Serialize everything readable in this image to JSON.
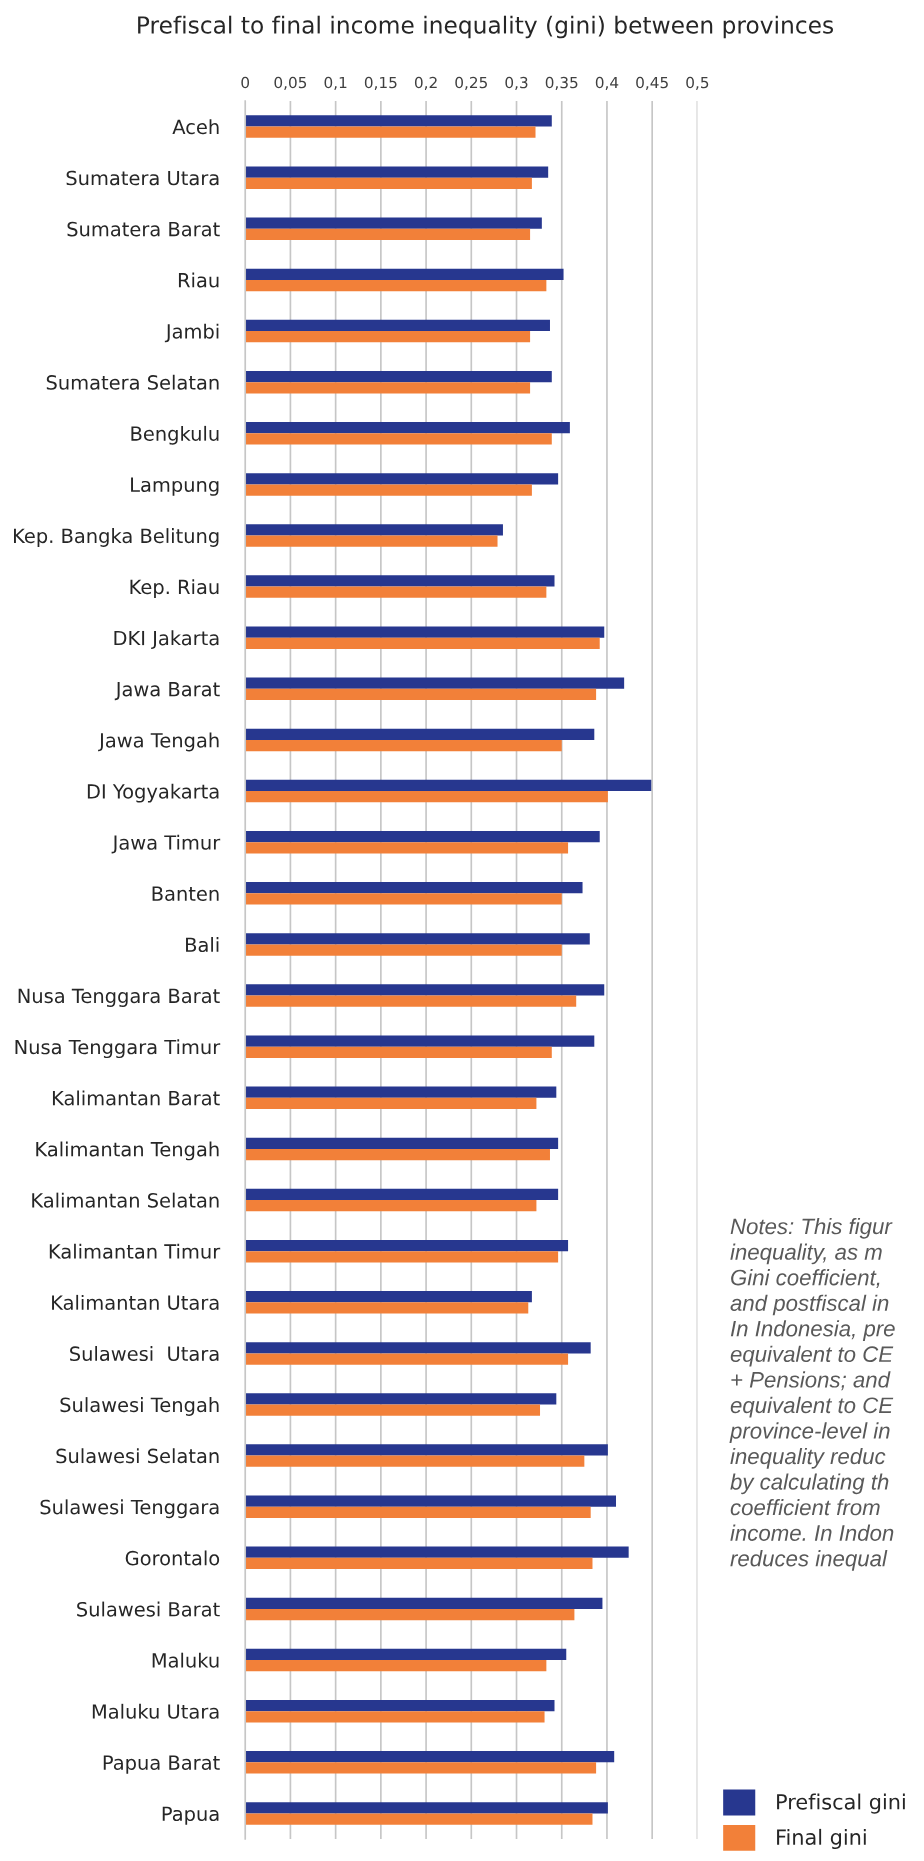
{
  "chart_data": {
    "type": "bar",
    "orientation": "horizontal",
    "title": "Prefiscal to final income inequality (gini) between provinces",
    "categories": [
      "Aceh",
      "Sumatera Utara",
      "Sumatera Barat",
      "Riau",
      "Jambi",
      "Sumatera Selatan",
      "Bengkulu",
      "Lampung",
      "Kep. Bangka Belitung",
      "Kep. Riau",
      "DKI Jakarta",
      "Jawa Barat",
      "Jawa Tengah",
      "DI Yogyakarta",
      "Jawa Timur",
      "Banten",
      "Bali",
      "Nusa Tenggara Barat",
      "Nusa Tenggara Timur",
      "Kalimantan Barat",
      "Kalimantan Tengah",
      "Kalimantan Selatan",
      "Kalimantan Timur",
      "Kalimantan Utara",
      "Sulawesi  Utara",
      "Sulawesi Tengah",
      "Sulawesi Selatan",
      "Sulawesi Tenggara",
      "Gorontalo",
      "Sulawesi Barat",
      "Maluku",
      "Maluku Utara",
      "Papua Barat",
      "Papua"
    ],
    "series": [
      {
        "name": "Prefiscal gini",
        "color": "#27378f",
        "values": [
          0.339,
          0.335,
          0.328,
          0.352,
          0.337,
          0.339,
          0.359,
          0.346,
          0.285,
          0.342,
          0.397,
          0.419,
          0.386,
          0.449,
          0.392,
          0.373,
          0.381,
          0.397,
          0.386,
          0.344,
          0.346,
          0.346,
          0.357,
          0.317,
          0.382,
          0.344,
          0.401,
          0.41,
          0.424,
          0.395,
          0.355,
          0.342,
          0.408,
          0.401
        ]
      },
      {
        "name": "Final gini",
        "color": "#f28039",
        "values": [
          0.321,
          0.317,
          0.315,
          0.333,
          0.315,
          0.315,
          0.339,
          0.317,
          0.279,
          0.333,
          0.392,
          0.388,
          0.35,
          0.401,
          0.357,
          0.35,
          0.35,
          0.366,
          0.339,
          0.322,
          0.337,
          0.322,
          0.346,
          0.313,
          0.357,
          0.326,
          0.375,
          0.382,
          0.384,
          0.364,
          0.333,
          0.331,
          0.388,
          0.384
        ]
      }
    ],
    "xlim": [
      0,
      0.5
    ],
    "xticks": [
      0,
      {
        "value": 0.05,
        "label": "0,05"
      },
      {
        "value": 0.1,
        "label": "0,1"
      },
      {
        "value": 0.15,
        "label": "0,15"
      },
      {
        "value": 0.2,
        "label": "0,2"
      },
      {
        "value": 0.25,
        "label": "0,25"
      },
      {
        "value": 0.3,
        "label": "0,3"
      },
      {
        "value": 0.35,
        "label": "0,35"
      },
      {
        "value": 0.4,
        "label": "0,4"
      },
      {
        "value": 0.45,
        "label": "0,45"
      },
      {
        "value": 0.5,
        "label": "0,5"
      }
    ],
    "grid": "x",
    "legend": "bottom right",
    "annotations": [
      "Notes: This figur\ninequality, as m\nGini coefficient,\nand postfiscal in\nIn Indonesia, pre\nequivalent to CE\n+ Pensions; and\nequivalent to CE\nprovince-level in\ninequality reduc\nby calculating th\ncoefficient from\nincome. In Indon\nreduces inequal"
    ]
  }
}
